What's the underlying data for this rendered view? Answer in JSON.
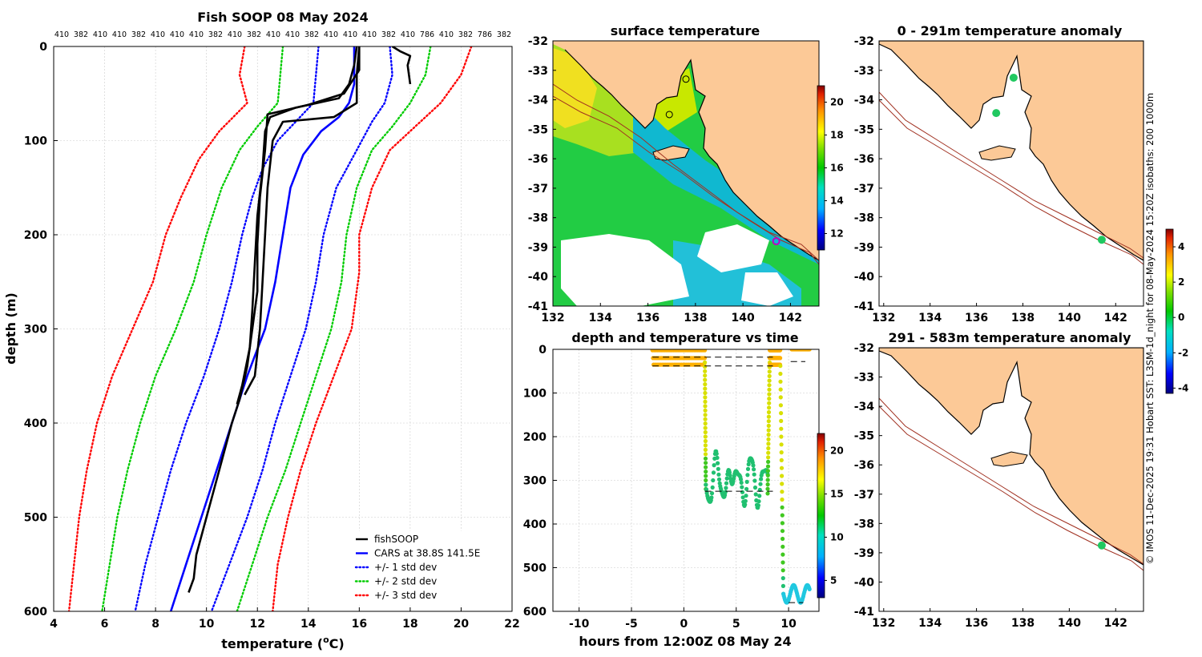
{
  "credit": "© IMOS 11-Dec-2025 19:31 Hobart SST: L3SM-1d_night for 08-May-2024 15:20Z isobaths: 200  1000m",
  "chart_data": [
    {
      "id": "profile",
      "type": "line",
      "title": "Fish SOOP 08 May 2024",
      "xlabel": "temperature (",
      "xlabel_sup": "o",
      "xlabel_end": "C)",
      "ylabel": "depth (m)",
      "xlim": [
        4,
        22
      ],
      "ylim": [
        600,
        0
      ],
      "xticks": [
        4,
        6,
        8,
        10,
        12,
        14,
        16,
        18,
        20,
        22
      ],
      "yticks": [
        0,
        100,
        200,
        300,
        400,
        500,
        600
      ],
      "top_labels": [
        "410",
        "382",
        "410",
        "410",
        "382",
        "410",
        "410",
        "410",
        "382",
        "410",
        "382",
        "410",
        "410",
        "382",
        "410",
        "410",
        "410",
        "382",
        "410",
        "786",
        "410",
        "382",
        "786",
        "382"
      ],
      "legend": [
        {
          "label": "fishSOOP",
          "color": "#000000",
          "dash": "solid"
        },
        {
          "label": "CARS at 38.8S 141.5E",
          "color": "#0000ff",
          "dash": "solid"
        },
        {
          "label": "+/- 1 std dev",
          "color": "#0000ff",
          "dash": "dot"
        },
        {
          "label": "+/- 2 std dev",
          "color": "#00cc00",
          "dash": "dot"
        },
        {
          "label": "+/- 3 std dev",
          "color": "#ff0000",
          "dash": "dot"
        }
      ],
      "series": [
        {
          "name": "CARS",
          "color": "#0000ff",
          "dash": "solid",
          "points": [
            [
              15.8,
              0
            ],
            [
              15.8,
              40
            ],
            [
              15.6,
              60
            ],
            [
              15.2,
              75
            ],
            [
              14.5,
              90
            ],
            [
              13.8,
              115
            ],
            [
              13.3,
              150
            ],
            [
              13.0,
              200
            ],
            [
              12.7,
              250
            ],
            [
              12.3,
              300
            ],
            [
              11.6,
              350
            ],
            [
              11.0,
              400
            ],
            [
              10.4,
              450
            ],
            [
              9.8,
              500
            ],
            [
              9.2,
              550
            ],
            [
              8.6,
              600
            ]
          ]
        },
        {
          "name": "CARS -1 std",
          "color": "#0000ff",
          "dash": "dot",
          "points": [
            [
              14.4,
              0
            ],
            [
              14.3,
              30
            ],
            [
              14.2,
              60
            ],
            [
              13.5,
              80
            ],
            [
              12.8,
              100
            ],
            [
              12.2,
              130
            ],
            [
              11.8,
              160
            ],
            [
              11.4,
              200
            ],
            [
              11.0,
              250
            ],
            [
              10.5,
              300
            ],
            [
              9.9,
              350
            ],
            [
              9.2,
              400
            ],
            [
              8.6,
              450
            ],
            [
              8.1,
              500
            ],
            [
              7.6,
              550
            ],
            [
              7.2,
              600
            ]
          ]
        },
        {
          "name": "CARS +1 std",
          "color": "#0000ff",
          "dash": "dot",
          "points": [
            [
              17.2,
              0
            ],
            [
              17.3,
              30
            ],
            [
              17.0,
              60
            ],
            [
              16.5,
              80
            ],
            [
              15.9,
              110
            ],
            [
              15.1,
              150
            ],
            [
              14.6,
              200
            ],
            [
              14.3,
              250
            ],
            [
              13.9,
              300
            ],
            [
              13.3,
              350
            ],
            [
              12.7,
              400
            ],
            [
              12.2,
              450
            ],
            [
              11.6,
              500
            ],
            [
              10.9,
              550
            ],
            [
              10.2,
              600
            ]
          ]
        },
        {
          "name": "CARS -2 std",
          "color": "#00cc00",
          "dash": "dot",
          "points": [
            [
              13.0,
              0
            ],
            [
              12.9,
              30
            ],
            [
              12.8,
              60
            ],
            [
              12.0,
              85
            ],
            [
              11.3,
              110
            ],
            [
              10.6,
              150
            ],
            [
              10.0,
              200
            ],
            [
              9.5,
              250
            ],
            [
              8.8,
              300
            ],
            [
              8.0,
              350
            ],
            [
              7.4,
              400
            ],
            [
              6.9,
              450
            ],
            [
              6.5,
              500
            ],
            [
              6.2,
              550
            ],
            [
              5.9,
              600
            ]
          ]
        },
        {
          "name": "CARS +2 std",
          "color": "#00cc00",
          "dash": "dot",
          "points": [
            [
              18.8,
              0
            ],
            [
              18.6,
              30
            ],
            [
              18.0,
              60
            ],
            [
              17.3,
              85
            ],
            [
              16.5,
              110
            ],
            [
              15.9,
              150
            ],
            [
              15.5,
              200
            ],
            [
              15.3,
              250
            ],
            [
              14.9,
              300
            ],
            [
              14.3,
              350
            ],
            [
              13.7,
              400
            ],
            [
              13.1,
              450
            ],
            [
              12.4,
              500
            ],
            [
              11.8,
              550
            ],
            [
              11.2,
              600
            ]
          ]
        },
        {
          "name": "CARS -3 std",
          "color": "#ff0000",
          "dash": "dot",
          "points": [
            [
              11.5,
              0
            ],
            [
              11.3,
              30
            ],
            [
              11.6,
              60
            ],
            [
              10.5,
              90
            ],
            [
              9.7,
              120
            ],
            [
              9.0,
              160
            ],
            [
              8.4,
              200
            ],
            [
              7.9,
              250
            ],
            [
              7.1,
              300
            ],
            [
              6.3,
              350
            ],
            [
              5.7,
              400
            ],
            [
              5.3,
              450
            ],
            [
              5.0,
              500
            ],
            [
              4.8,
              550
            ],
            [
              4.6,
              600
            ]
          ]
        },
        {
          "name": "CARS +3 std",
          "color": "#ff0000",
          "dash": "dot",
          "points": [
            [
              20.4,
              0
            ],
            [
              20.0,
              30
            ],
            [
              19.2,
              60
            ],
            [
              18.2,
              85
            ],
            [
              17.2,
              110
            ],
            [
              16.5,
              150
            ],
            [
              16.0,
              200
            ],
            [
              16.0,
              240
            ],
            [
              15.7,
              300
            ],
            [
              15.0,
              350
            ],
            [
              14.3,
              400
            ],
            [
              13.7,
              450
            ],
            [
              13.2,
              500
            ],
            [
              12.8,
              550
            ],
            [
              12.6,
              600
            ]
          ]
        },
        {
          "name": "fishSOOP cast 1",
          "color": "#000000",
          "dash": "solid",
          "points": [
            [
              15.9,
              0
            ],
            [
              15.8,
              20
            ],
            [
              15.6,
              40
            ],
            [
              15.2,
              55
            ],
            [
              13.5,
              65
            ],
            [
              12.5,
              75
            ],
            [
              12.3,
              90
            ],
            [
              12.2,
              130
            ],
            [
              12.0,
              180
            ],
            [
              11.9,
              230
            ],
            [
              11.8,
              280
            ],
            [
              11.7,
              320
            ],
            [
              11.4,
              360
            ],
            [
              11.2,
              380
            ]
          ]
        },
        {
          "name": "fishSOOP cast 2",
          "color": "#000000",
          "dash": "solid",
          "points": [
            [
              16.0,
              0
            ],
            [
              16.0,
              25
            ],
            [
              15.4,
              50
            ],
            [
              14.0,
              62
            ],
            [
              12.4,
              72
            ],
            [
              12.3,
              110
            ],
            [
              12.1,
              160
            ],
            [
              12.0,
              210
            ],
            [
              12.0,
              260
            ],
            [
              11.8,
              300
            ],
            [
              11.6,
              340
            ],
            [
              11.3,
              375
            ],
            [
              11.0,
              400
            ],
            [
              10.5,
              450
            ],
            [
              10.0,
              500
            ],
            [
              9.6,
              540
            ],
            [
              9.5,
              565
            ],
            [
              9.3,
              580
            ]
          ]
        },
        {
          "name": "fishSOOP cast 3",
          "color": "#000000",
          "dash": "solid",
          "points": [
            [
              16.0,
              0
            ],
            [
              15.9,
              30
            ],
            [
              15.9,
              60
            ],
            [
              15.0,
              75
            ],
            [
              13.0,
              80
            ],
            [
              12.6,
              100
            ],
            [
              12.4,
              150
            ],
            [
              12.3,
              200
            ],
            [
              12.2,
              250
            ],
            [
              12.1,
              300
            ],
            [
              11.9,
              350
            ],
            [
              11.5,
              370
            ]
          ]
        },
        {
          "name": "fishSOOP surface",
          "color": "#000000",
          "dash": "solid",
          "points": [
            [
              17.3,
              0
            ],
            [
              17.6,
              5
            ],
            [
              18.0,
              10
            ],
            [
              17.9,
              20
            ],
            [
              18.0,
              40
            ]
          ]
        }
      ]
    },
    {
      "id": "sst",
      "type": "heatmap",
      "title": "surface temperature",
      "xlim": [
        132,
        143.2
      ],
      "ylim": [
        -41,
        -32
      ],
      "xticks": [
        132,
        134,
        136,
        138,
        140,
        142
      ],
      "yticks": [
        -32,
        -33,
        -34,
        -35,
        -36,
        -37,
        -38,
        -39,
        -40,
        -41
      ],
      "colorbar": {
        "min": 11,
        "max": 21,
        "ticks": [
          12,
          14,
          16,
          18,
          20
        ]
      },
      "markers": [
        [
          137.6,
          -33.3
        ],
        [
          136.9,
          -34.5
        ],
        [
          141.4,
          -38.8
        ]
      ]
    },
    {
      "id": "anom_shallow",
      "type": "scatter",
      "title": "0 - 291m temperature anomaly",
      "xlim": [
        131.8,
        143.2
      ],
      "ylim": [
        -41,
        -32
      ],
      "xticks": [
        132,
        134,
        136,
        138,
        140,
        142
      ],
      "yticks": [
        -32,
        -33,
        -34,
        -35,
        -36,
        -37,
        -38,
        -39,
        -40,
        -41
      ],
      "points": [
        [
          137.6,
          -33.25,
          0
        ],
        [
          136.85,
          -34.45,
          0
        ],
        [
          141.4,
          -38.75,
          0
        ]
      ],
      "colorbar": {
        "min": -4.3,
        "max": 5,
        "ticks": [
          4,
          2,
          0,
          -2,
          -4
        ]
      }
    },
    {
      "id": "anom_deep",
      "type": "scatter",
      "title": "291 - 583m temperature anomaly",
      "xlim": [
        131.8,
        143.2
      ],
      "ylim": [
        -41,
        -32
      ],
      "xticks": [
        132,
        134,
        136,
        138,
        140,
        142
      ],
      "yticks": [
        -32,
        -33,
        -34,
        -35,
        -36,
        -37,
        -38,
        -39,
        -40,
        -41
      ],
      "points": [
        [
          141.4,
          -38.75,
          0.3
        ]
      ]
    },
    {
      "id": "timeseries",
      "type": "scatter",
      "title": "depth and temperature vs time",
      "xlabel": "hours from 12:00Z 08 May 24",
      "xlim": [
        -12.5,
        12.9
      ],
      "ylim": [
        600,
        0
      ],
      "xticks": [
        -10,
        -5,
        0,
        5,
        10
      ],
      "yticks": [
        0,
        100,
        200,
        300,
        400,
        500,
        600
      ],
      "colorbar": {
        "min": 3,
        "max": 22,
        "ticks": [
          5,
          10,
          15,
          20
        ]
      },
      "segments": [
        {
          "t0": -3.0,
          "t1": 2.0,
          "mode": "surface",
          "temp": 17.5
        },
        {
          "t0": 2.0,
          "t1": 2.1,
          "mode": "descent",
          "from": 20,
          "to": 320,
          "temp": 13
        },
        {
          "t0": 2.1,
          "t1": 8.0,
          "mode": "bottom",
          "temp": 12.2
        },
        {
          "t0": 8.0,
          "t1": 8.2,
          "mode": "ascent",
          "from": 330,
          "to": 20,
          "temp": 13
        },
        {
          "t0": 8.2,
          "t1": 9.2,
          "mode": "surface",
          "temp": 17.5
        },
        {
          "t0": 9.2,
          "t1": 9.5,
          "mode": "descent",
          "from": 20,
          "to": 560,
          "temp": 12
        },
        {
          "t0": 9.5,
          "t1": 12.0,
          "mode": "deep",
          "temp": 9.0
        },
        {
          "t0": 10.3,
          "t1": 12.0,
          "mode": "surfacepts",
          "temp": 17.0
        }
      ],
      "dashed": [
        [
          [
            -3,
            0
          ],
          [
            8.5,
            0
          ]
        ],
        [
          [
            -3,
            18
          ],
          [
            8.5,
            18
          ]
        ],
        [
          [
            -3,
            38
          ],
          [
            8.5,
            38
          ]
        ],
        [
          [
            2.0,
            325
          ],
          [
            8.5,
            325
          ]
        ],
        [
          [
            10.2,
            28
          ],
          [
            11.6,
            28
          ]
        ],
        [
          [
            10.0,
            580
          ],
          [
            11.4,
            580
          ]
        ]
      ]
    }
  ]
}
